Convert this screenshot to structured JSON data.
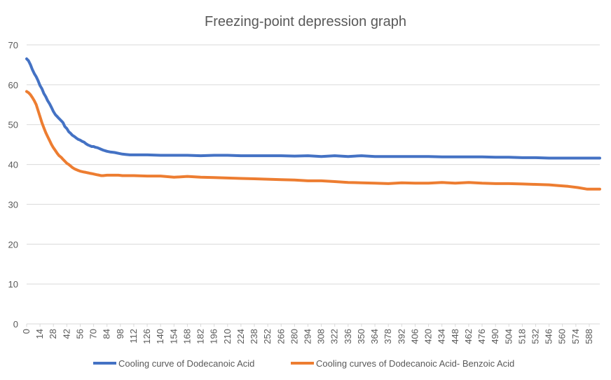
{
  "chart_data": {
    "type": "line",
    "title": "Freezing-point depression graph",
    "xlabel": "",
    "ylabel": "",
    "ylim": [
      0,
      70
    ],
    "xlim": [
      0,
      599
    ],
    "y_ticks": [
      "0",
      "10",
      "20",
      "30",
      "40",
      "50",
      "60",
      "70"
    ],
    "x_ticks": [
      "0",
      "14",
      "28",
      "42",
      "56",
      "70",
      "84",
      "98",
      "112",
      "126",
      "140",
      "154",
      "168",
      "182",
      "196",
      "210",
      "224",
      "238",
      "252",
      "266",
      "280",
      "294",
      "308",
      "322",
      "336",
      "350",
      "364",
      "378",
      "392",
      "406",
      "420",
      "434",
      "448",
      "462",
      "476",
      "490",
      "504",
      "518",
      "532",
      "546",
      "560",
      "574",
      "588"
    ],
    "grid": true,
    "legend_position": "bottom",
    "series": [
      {
        "name": "Cooling curve of Dodecanoic Acid",
        "color": "#4472c4",
        "x": [
          0,
          2,
          4,
          6,
          8,
          10,
          12,
          14,
          16,
          18,
          20,
          22,
          24,
          26,
          28,
          30,
          32,
          34,
          36,
          38,
          40,
          42,
          44,
          46,
          48,
          50,
          52,
          54,
          56,
          58,
          60,
          62,
          64,
          66,
          68,
          70,
          72,
          74,
          76,
          78,
          80,
          84,
          88,
          92,
          96,
          100,
          104,
          108,
          112,
          126,
          140,
          154,
          168,
          182,
          196,
          210,
          224,
          238,
          252,
          266,
          280,
          294,
          308,
          322,
          336,
          350,
          364,
          378,
          392,
          406,
          420,
          434,
          448,
          462,
          476,
          490,
          504,
          518,
          532,
          546,
          560,
          574,
          588,
          599
        ],
        "values": [
          66.5,
          66.0,
          65.0,
          63.8,
          62.8,
          62.0,
          61.0,
          59.8,
          59.0,
          57.8,
          57.0,
          56.0,
          55.2,
          54.3,
          53.3,
          52.5,
          52.0,
          51.5,
          51.0,
          50.5,
          49.5,
          49.0,
          48.2,
          47.8,
          47.3,
          47.0,
          46.6,
          46.3,
          46.1,
          45.8,
          45.6,
          45.2,
          44.9,
          44.7,
          44.5,
          44.5,
          44.3,
          44.2,
          44.0,
          43.8,
          43.6,
          43.3,
          43.1,
          43.0,
          42.8,
          42.6,
          42.5,
          42.4,
          42.4,
          42.4,
          42.3,
          42.3,
          42.3,
          42.2,
          42.3,
          42.3,
          42.2,
          42.2,
          42.2,
          42.2,
          42.1,
          42.2,
          42.0,
          42.2,
          42.0,
          42.2,
          42.0,
          42.0,
          42.0,
          42.0,
          42.0,
          41.9,
          41.9,
          41.9,
          41.9,
          41.8,
          41.8,
          41.7,
          41.7,
          41.6,
          41.6,
          41.6,
          41.6,
          41.6
        ]
      },
      {
        "name": "Cooling curves of Dodecanoic Acid- Benzoic Acid",
        "color": "#ed7d31",
        "x": [
          0,
          2,
          4,
          6,
          8,
          10,
          12,
          14,
          16,
          18,
          20,
          22,
          24,
          26,
          28,
          30,
          32,
          34,
          36,
          38,
          40,
          42,
          44,
          46,
          48,
          50,
          52,
          54,
          56,
          58,
          60,
          62,
          64,
          66,
          68,
          70,
          72,
          74,
          76,
          78,
          80,
          84,
          88,
          92,
          96,
          100,
          112,
          126,
          140,
          154,
          168,
          182,
          196,
          210,
          224,
          238,
          252,
          266,
          280,
          294,
          308,
          322,
          336,
          350,
          364,
          378,
          392,
          406,
          420,
          434,
          448,
          462,
          476,
          490,
          504,
          518,
          532,
          546,
          556,
          566,
          576,
          586,
          599
        ],
        "values": [
          58.3,
          58.0,
          57.5,
          56.8,
          56.0,
          55.0,
          53.5,
          52.0,
          50.5,
          49.2,
          48.0,
          47.0,
          46.0,
          45.0,
          44.2,
          43.5,
          42.8,
          42.2,
          41.8,
          41.3,
          40.8,
          40.3,
          40.0,
          39.6,
          39.2,
          38.9,
          38.7,
          38.5,
          38.3,
          38.2,
          38.1,
          38.0,
          37.9,
          37.8,
          37.7,
          37.6,
          37.5,
          37.4,
          37.3,
          37.2,
          37.2,
          37.3,
          37.3,
          37.3,
          37.3,
          37.2,
          37.2,
          37.1,
          37.1,
          36.8,
          37.0,
          36.8,
          36.7,
          36.6,
          36.5,
          36.4,
          36.3,
          36.2,
          36.1,
          35.9,
          35.9,
          35.7,
          35.5,
          35.4,
          35.3,
          35.2,
          35.4,
          35.3,
          35.3,
          35.5,
          35.3,
          35.5,
          35.3,
          35.2,
          35.2,
          35.1,
          35.0,
          34.9,
          34.7,
          34.5,
          34.2,
          33.8,
          33.8
        ]
      }
    ]
  }
}
